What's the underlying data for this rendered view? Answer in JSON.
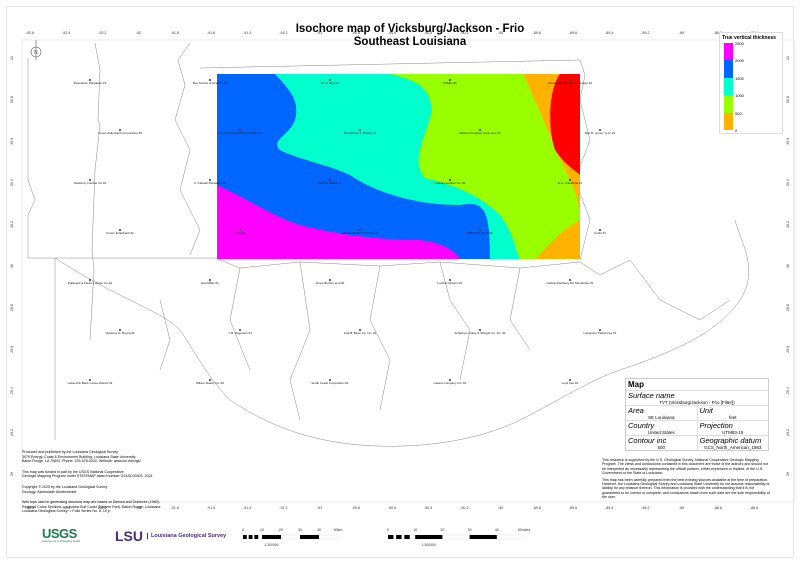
{
  "title": {
    "line1": "Isochore map of Vicksburg/Jackson - Frio",
    "line2": "Southeast Louisiana"
  },
  "north_arrow": {
    "label": "N",
    "icon": "north-arrow-icon"
  },
  "axes": {
    "longitude_ticks": [
      "-92.6",
      "-92.4",
      "-92.2",
      "-92",
      "-91.8",
      "-91.6",
      "-91.4",
      "-91.2",
      "-91",
      "-90.8",
      "-90.6",
      "-90.4",
      "-90.2",
      "-90",
      "-89.8",
      "-89.6",
      "-89.4",
      "-89.2",
      "-89",
      "-88.8",
      "-88.6"
    ],
    "latitude_ticks": [
      "31",
      "30.8",
      "30.6",
      "30.4",
      "30.2",
      "30",
      "29.8",
      "29.6",
      "29.4",
      "29.2",
      "29"
    ]
  },
  "legend": {
    "title": "True vertical thickness",
    "ticks": [
      "2500",
      "2000",
      "1500",
      "1000",
      "500",
      "0"
    ],
    "colors": [
      "#ff00ff",
      "#0066ff",
      "#00ffcc",
      "#99ff00",
      "#ffb300"
    ],
    "max_color": "#ff0000"
  },
  "wells": [
    "Rosedown Plantation #1",
    "Boy Scouts of America #1",
    "W. E. Day #1",
    "Phillips #1",
    "Crown Zellerbach Corporation #1",
    "Crown Zellerbach Corporation #3",
    "Crown Zellerbach Corporation #2",
    "Mrs Fannie T. Brooks #1",
    "Waxtel Container Corp. Fee #1",
    "Bob R. Jones \"A-A\" #1",
    "Newberry Lumber Co #1",
    "A. Claudel Plantation #1",
    "Murphy Rollow #1",
    "Lindsay Lumber Co. #1",
    "E. A. Tranchina #1",
    "Crown Zellerbach #1",
    "Nally #1",
    "Hammond Oil & Gas Co. #1",
    "William T. Joyce #1",
    "Curtis #1",
    "Pollevard & Fierce Lumber Co #1",
    "Earl Miller #1",
    "Jones Burden et al #1",
    "Lumber Mouton #1",
    "Hurlste Paulburg Dix Montantier #1",
    "Clarence G. Boyce #1",
    "J. B. Rogerson #1",
    "Lula B. Bean Co. Inc. #1",
    "Schwing Lumber & Shingle Co. Inc. #1",
    "Livingston Parish Fee #1",
    "Lafourche Basin Levee District #1",
    "Wilson Realty Co. #2",
    "South Coast Corporation #1",
    "Latona Company Inc. #1",
    "Loyd Fee #1"
  ],
  "info_box": {
    "heading": "Map",
    "surface_name_label": "Surface name",
    "surface_name": "TVT (Vicksburg/Jackson - Frio [Filter])",
    "area_label": "Area",
    "area": "SE Louisiana",
    "unit_label": "Unit",
    "unit": "feet",
    "country_label": "Country",
    "country": "United States",
    "projection_label": "Projection",
    "projection": "UTM83-15",
    "contour_label": "Contour inc",
    "contour": "500",
    "datum_label": "Geographic datum",
    "datum": "GCS_North_American_1983"
  },
  "disclaimer": {
    "p1": "This research is supported by the U.S. Geological Survey, National Cooperative Geologic Mapping Program. The views and conclusions contained in this document are those of the authors and should not be interpreted as necessarily representing the official policies, either expressed or implied, of the U.S. Government or the State of Louisiana.",
    "p2": "This map has been carefully prepared from the best existing sources available at the time of preparation. However, the Louisiana Geological Survey and Louisiana State University do not assume responsibility or liability for any reliance thereon. This information is provided with the understanding that it is not guaranteed to be correct or complete, and conclusions drawn from such data are the sole responsibility of the user."
  },
  "credits": {
    "p1": "Produced and published by the Louisiana Geological Survey\n3079 Energy, Coast & Environment Building, Louisiana State University\nBaton Rouge, LA 70803. Phone: 225-578-5320. Website: www.lsu.edu/lgs/",
    "p2": "This map was funded in part by the USGS National Cooperative\nGeologic Mapping Program under STATEMAP award number G24AC00303, 2024",
    "p3": "Copyright © 2025 by the Louisiana Geological Survey\nGeology: Akinbolade Akinbonmide",
    "p4": "Well tops used in generating structure map are based on Bebout and Gutierrez (1983):\nRegional Cross Sections, Louisiana Gulf Coast (Eastern Part). Baton Rouge, Louisiana\nLouisiana Geological Survey. = Folio Series No. 6, 10 p."
  },
  "logos": {
    "usgs": "USGS",
    "usgs_tagline": "science for a changing world",
    "lsu": "LSU",
    "lsu_name": "Louisiana Geological Survey"
  },
  "scalebars": [
    {
      "ticks": [
        "0",
        "10",
        "20",
        "30",
        "40",
        "50km"
      ],
      "ratio": "1:300000"
    },
    {
      "ticks": [
        "0",
        "10",
        "20",
        "30",
        "40",
        "50miles"
      ],
      "ratio": "1:300000"
    }
  ]
}
